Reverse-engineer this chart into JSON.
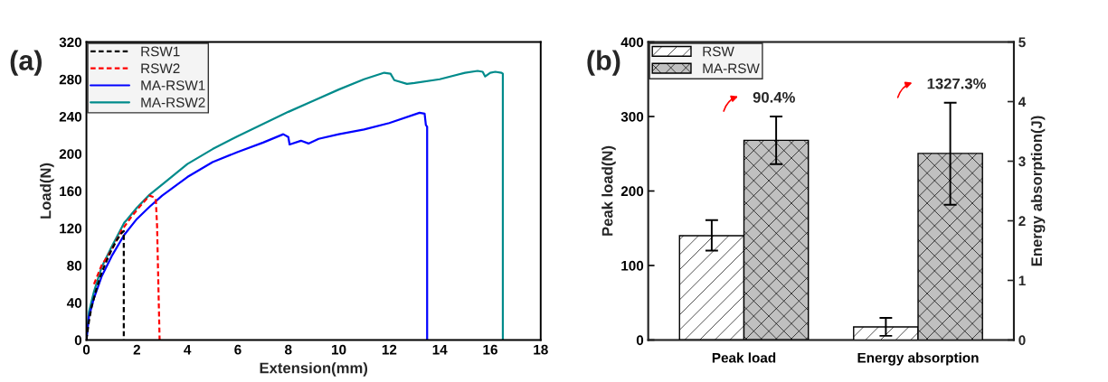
{
  "chart_data": [
    {
      "type": "line",
      "title": "(a)",
      "xlabel": "Extension(mm)",
      "ylabel": "Load(N)",
      "xlim": [
        0,
        18
      ],
      "xticks": [
        0,
        2,
        4,
        6,
        8,
        10,
        12,
        14,
        16,
        18
      ],
      "ylim": [
        0,
        320
      ],
      "yticks": [
        0,
        40,
        80,
        120,
        160,
        200,
        240,
        280,
        320
      ],
      "legend": "top left",
      "grid": false,
      "series": [
        {
          "name": "RSW1",
          "color": "#000000",
          "line_style": "dashed",
          "x": [
            0,
            0.1,
            0.2,
            0.4,
            0.6,
            0.8,
            1.0,
            1.2,
            1.4,
            1.48,
            1.48
          ],
          "values": [
            0,
            20,
            35,
            55,
            72,
            85,
            97,
            107,
            115,
            117,
            0
          ]
        },
        {
          "name": "RSW2",
          "color": "#ff0000",
          "line_style": "dashed",
          "x": [
            0.3,
            0.6,
            1.0,
            1.4,
            1.8,
            2.2,
            2.5,
            2.7,
            2.75,
            2.8,
            2.85,
            2.9
          ],
          "values": [
            60,
            80,
            97,
            118,
            133,
            146,
            155,
            153,
            150,
            122,
            60,
            0
          ]
        },
        {
          "name": "MA-RSW1",
          "color": "#0000ff",
          "line_style": "solid",
          "x": [
            0,
            0.1,
            0.3,
            0.6,
            1.0,
            1.5,
            2.0,
            2.5,
            3.0,
            4.0,
            5.0,
            6.0,
            7.0,
            7.8,
            8.0,
            8.05,
            8.5,
            8.8,
            9.2,
            10.0,
            11.0,
            12.0,
            13.2,
            13.4,
            13.45,
            13.5,
            13.5
          ],
          "values": [
            0,
            25,
            45,
            68,
            90,
            113,
            130,
            143,
            155,
            175,
            191,
            202,
            212,
            221,
            218,
            210,
            214,
            211,
            216,
            221,
            226,
            233,
            244,
            243,
            231,
            229,
            0
          ]
        },
        {
          "name": "MA-RSW2",
          "color": "#008b8b",
          "line_style": "solid",
          "x": [
            0,
            0.1,
            0.3,
            0.6,
            1.0,
            1.5,
            1.6,
            2.0,
            2.5,
            3.0,
            4.0,
            5.0,
            6.0,
            7.0,
            8.0,
            9.0,
            10.0,
            11.0,
            11.8,
            12.05,
            12.2,
            12.7,
            13.0,
            14.0,
            15.0,
            15.5,
            15.7,
            15.8,
            16.0,
            16.2,
            16.45,
            16.5,
            16.5
          ],
          "values": [
            0,
            30,
            52,
            78,
            100,
            126,
            129,
            142,
            156,
            167,
            189,
            205,
            219,
            232,
            245,
            257,
            269,
            280,
            287,
            286,
            279,
            275,
            276,
            280,
            287,
            289,
            288,
            283,
            287,
            288,
            287,
            286,
            0
          ]
        }
      ]
    },
    {
      "type": "bar",
      "title": "(b)",
      "ylabel": "Peak load(N)",
      "y2label": "Energy absorption(J)",
      "categories": [
        "Peak load",
        "Energy absorption"
      ],
      "ylim": [
        0,
        400
      ],
      "yticks": [
        0,
        100,
        200,
        300,
        400
      ],
      "y2lim": [
        0,
        5
      ],
      "y2ticks": [
        0,
        1,
        2,
        3,
        4,
        5
      ],
      "legend": "top left",
      "grid": false,
      "annotations": [
        "90.4%",
        "1327.3%"
      ],
      "series": [
        {
          "name": "RSW",
          "color": "#ffffff",
          "values": [
            140,
            null
          ],
          "errors": [
            [
              120,
              161
            ],
            null
          ]
        },
        {
          "name": "MA-RSW",
          "color": "#c0c0c0",
          "values": [
            268,
            null
          ],
          "errors": [
            [
              236,
              300
            ],
            null
          ]
        },
        {
          "color": "#ffffff",
          "axis": "y2",
          "values": [
            null,
            0.22
          ],
          "errors": [
            null,
            [
              0.07,
              0.37
            ]
          ]
        },
        {
          "color": "#c0c0c0",
          "axis": "y2",
          "values": [
            null,
            3.13
          ],
          "errors": [
            null,
            [
              2.27,
              3.98
            ]
          ]
        }
      ]
    }
  ]
}
